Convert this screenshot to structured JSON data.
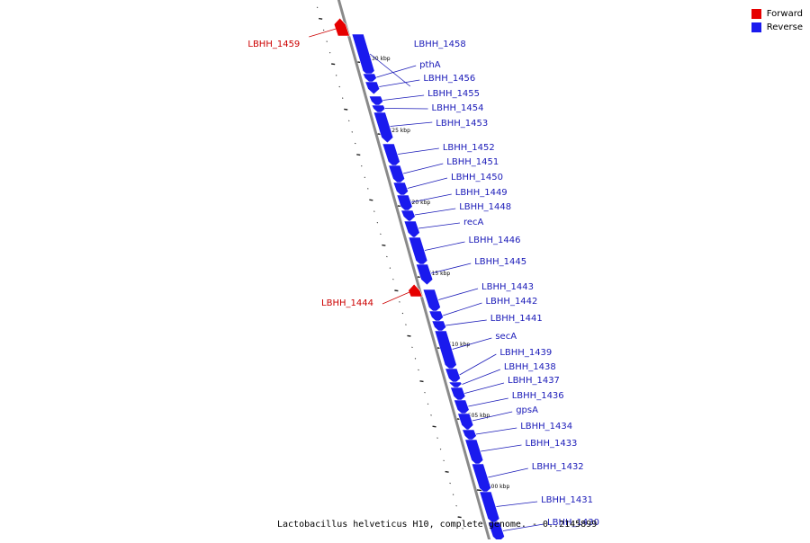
{
  "map": {
    "caption": "Lactobacillus helveticus H10, complete genome. - 0..2145899",
    "colors": {
      "forward": "#e60000",
      "reverse": "#1a1aee",
      "backbone": "#8a8a8a",
      "label_forward": "#cc0000",
      "label_reverse": "#1a1ab8"
    },
    "legend": [
      {
        "label": "Forward",
        "color": "#e60000"
      },
      {
        "label": "Reverse",
        "color": "#1a1aee"
      }
    ],
    "ticks": [
      {
        "label": "1530 kbp"
      },
      {
        "label": "1525 kbp"
      },
      {
        "label": "1520 kbp"
      },
      {
        "label": "1515 kbp"
      },
      {
        "label": "1510 kbp"
      },
      {
        "label": "1505 kbp"
      },
      {
        "label": "1500 kbp"
      }
    ],
    "genes": [
      {
        "label": "LBHH_1459",
        "strand": "forward"
      },
      {
        "label": "LBHH_1458",
        "strand": "reverse"
      },
      {
        "label": "pthA",
        "strand": "reverse"
      },
      {
        "label": "LBHH_1456",
        "strand": "reverse"
      },
      {
        "label": "LBHH_1455",
        "strand": "reverse"
      },
      {
        "label": "LBHH_1454",
        "strand": "reverse"
      },
      {
        "label": "LBHH_1453",
        "strand": "reverse"
      },
      {
        "label": "LBHH_1452",
        "strand": "reverse"
      },
      {
        "label": "LBHH_1451",
        "strand": "reverse"
      },
      {
        "label": "LBHH_1450",
        "strand": "reverse"
      },
      {
        "label": "LBHH_1449",
        "strand": "reverse"
      },
      {
        "label": "LBHH_1448",
        "strand": "reverse"
      },
      {
        "label": "recA",
        "strand": "reverse"
      },
      {
        "label": "LBHH_1446",
        "strand": "reverse"
      },
      {
        "label": "LBHH_1445",
        "strand": "reverse"
      },
      {
        "label": "LBHH_1444",
        "strand": "forward"
      },
      {
        "label": "LBHH_1443",
        "strand": "reverse"
      },
      {
        "label": "LBHH_1442",
        "strand": "reverse"
      },
      {
        "label": "LBHH_1441",
        "strand": "reverse"
      },
      {
        "label": "secA",
        "strand": "reverse"
      },
      {
        "label": "LBHH_1439",
        "strand": "reverse"
      },
      {
        "label": "LBHH_1438",
        "strand": "reverse"
      },
      {
        "label": "LBHH_1437",
        "strand": "reverse"
      },
      {
        "label": "LBHH_1436",
        "strand": "reverse"
      },
      {
        "label": "gpsA",
        "strand": "reverse"
      },
      {
        "label": "LBHH_1434",
        "strand": "reverse"
      },
      {
        "label": "LBHH_1433",
        "strand": "reverse"
      },
      {
        "label": "LBHH_1432",
        "strand": "reverse"
      },
      {
        "label": "LBHH_1431",
        "strand": "reverse"
      },
      {
        "label": "LBHH_1430",
        "strand": "reverse"
      }
    ]
  }
}
